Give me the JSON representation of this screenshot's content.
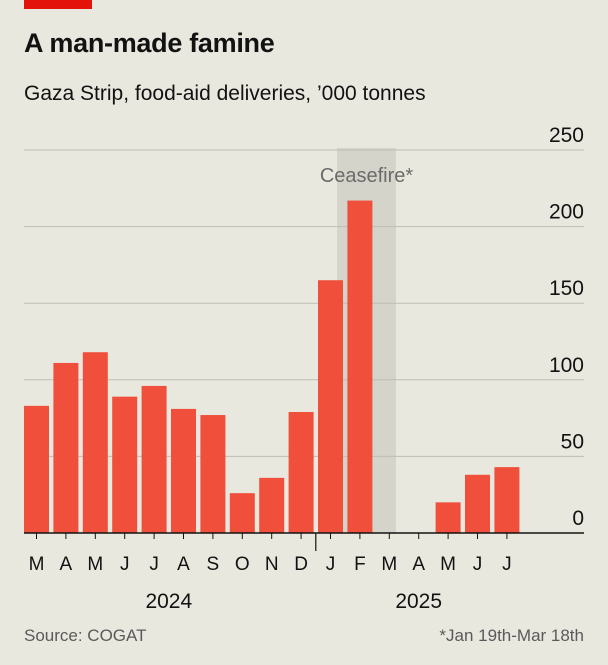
{
  "header": {
    "title": "A man-made famine",
    "subtitle": "Gaza Strip, food-aid deliveries, ’000 tonnes"
  },
  "footer": {
    "source": "Source: COGAT",
    "note": "*Jan 19th-Mar 18th"
  },
  "colors": {
    "bar": "#ef4f3b",
    "shade": "#d5d4cb",
    "grid": "#bdbdb6",
    "axis": "#121212"
  },
  "chart_data": {
    "type": "bar",
    "categories": [
      "M",
      "A",
      "M",
      "J",
      "J",
      "A",
      "S",
      "O",
      "N",
      "D",
      "J",
      "F",
      "M",
      "A",
      "M",
      "J",
      "J"
    ],
    "values": [
      83,
      111,
      118,
      89,
      96,
      81,
      77,
      26,
      36,
      79,
      165,
      217,
      0,
      0,
      20,
      38,
      43
    ],
    "year_labels": [
      {
        "label": "2024",
        "start": 0,
        "end": 9
      },
      {
        "label": "2025",
        "start": 10,
        "end": 16
      }
    ],
    "ylim": [
      0,
      250
    ],
    "yticks": [
      0,
      50,
      100,
      150,
      200,
      250
    ],
    "y_axis_side": "right",
    "grid": true,
    "annotation": {
      "label": "Ceasefire*",
      "from_index": 10.65,
      "to_index": 12.65
    }
  }
}
